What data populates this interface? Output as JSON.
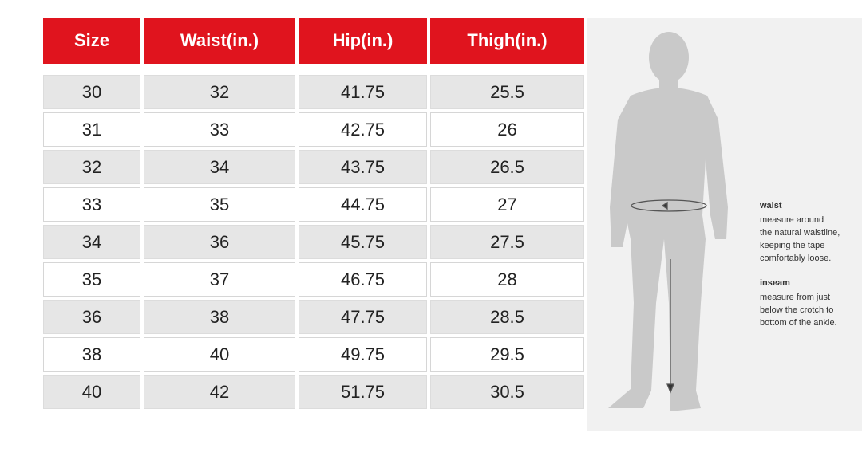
{
  "table": {
    "header": [
      "Size",
      "Waist(in.)",
      "Hip(in.)",
      "Thigh(in.)"
    ],
    "rows": [
      [
        "30",
        "32",
        "41.75",
        "25.5"
      ],
      [
        "31",
        "33",
        "42.75",
        "26"
      ],
      [
        "32",
        "34",
        "43.75",
        "26.5"
      ],
      [
        "33",
        "35",
        "44.75",
        "27"
      ],
      [
        "34",
        "36",
        "45.75",
        "27.5"
      ],
      [
        "35",
        "37",
        "46.75",
        "28"
      ],
      [
        "36",
        "38",
        "47.75",
        "28.5"
      ],
      [
        "38",
        "40",
        "49.75",
        "29.5"
      ],
      [
        "40",
        "42",
        "51.75",
        "30.5"
      ]
    ]
  },
  "guide": [
    {
      "title": "waist",
      "lines": [
        "measure around",
        "the natural waistline,",
        "keeping the tape",
        "comfortably loose."
      ]
    },
    {
      "title": "inseam",
      "lines": [
        "measure from just",
        "below the crotch to",
        "bottom of the ankle."
      ]
    }
  ]
}
